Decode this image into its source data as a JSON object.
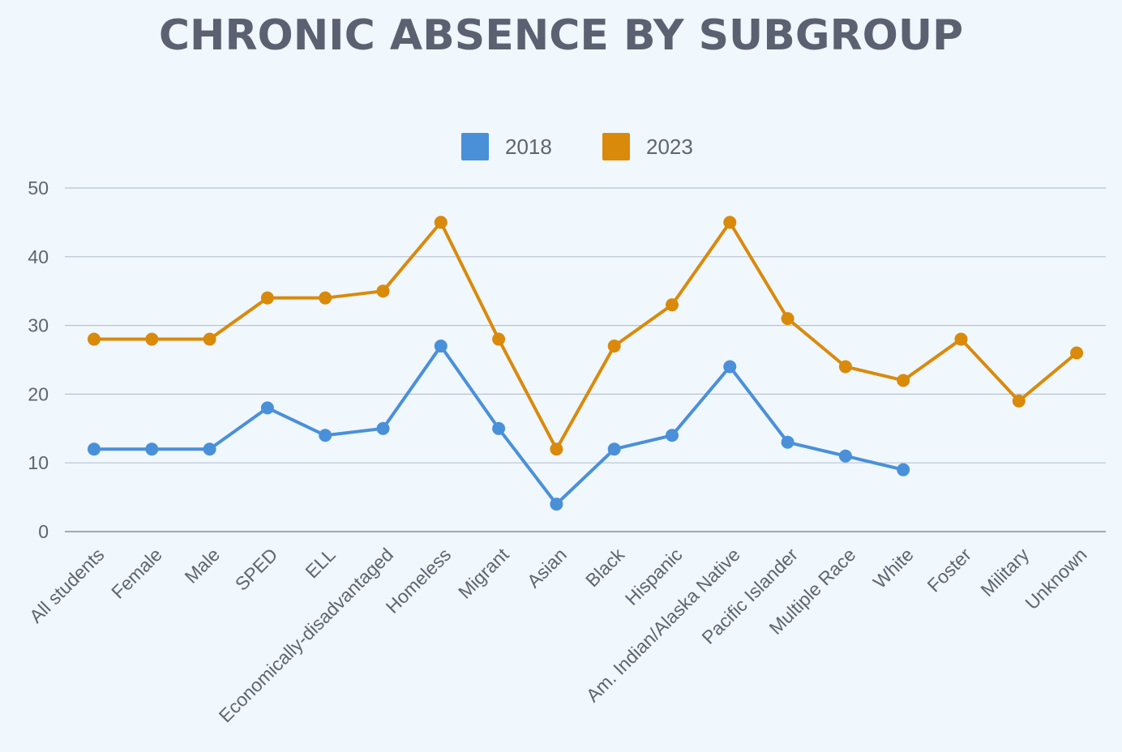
{
  "title": "CHRONIC ABSENCE BY SUBGROUP",
  "colors": {
    "background": "#f0f7fd",
    "grid": "#b9c3cf",
    "axis": "#8a8f99",
    "series_2018": "#4a90d9",
    "series_2023": "#d98a0b",
    "text": "#5f6470"
  },
  "chart_data": {
    "type": "line",
    "title": "CHRONIC ABSENCE BY SUBGROUP",
    "xlabel": "",
    "ylabel": "",
    "ylim": [
      0,
      50
    ],
    "yticks": [
      0,
      10,
      20,
      30,
      40,
      50
    ],
    "grid": true,
    "legend_position": "top-center",
    "categories": [
      "All students",
      "Female",
      "Male",
      "SPED",
      "ELL",
      "Economically-disadvantaged",
      "Homeless",
      "Migrant",
      "Asian",
      "Black",
      "Hispanic",
      "Am. Indian/Alaska Native",
      "Pacific Islander",
      "Multiple Race",
      "White",
      "Foster",
      "Military",
      "Unknown"
    ],
    "series": [
      {
        "name": "2018",
        "color": "#4a90d9",
        "values": [
          12,
          12,
          12,
          18,
          14,
          15,
          27,
          15,
          4,
          12,
          14,
          24,
          13,
          11,
          9,
          null,
          null,
          null
        ]
      },
      {
        "name": "2023",
        "color": "#d98a0b",
        "values": [
          28,
          28,
          28,
          34,
          34,
          35,
          45,
          28,
          12,
          27,
          33,
          45,
          31,
          24,
          22,
          28,
          19,
          26
        ]
      }
    ]
  }
}
